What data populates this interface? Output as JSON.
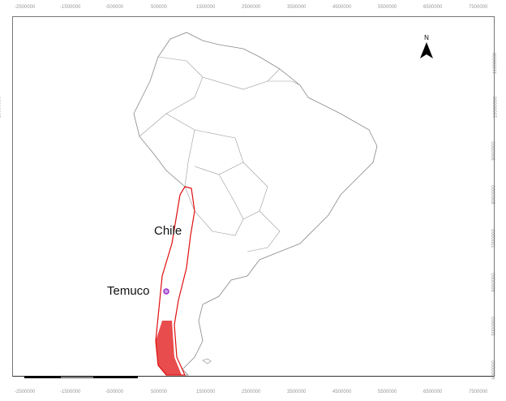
{
  "x_ticks": [
    "-2500000",
    "-1500000",
    "-500000",
    "500000",
    "1500000",
    "2500000",
    "3500000",
    "4500000",
    "5500000",
    "6500000",
    "7500000"
  ],
  "y_ticks": [
    "11000000",
    "10000000",
    "9000000",
    "8000000",
    "7000000",
    "6000000",
    "5000000",
    "4000000"
  ],
  "labels": {
    "country": "Chile",
    "city": "Temuco"
  },
  "north_arrow": {
    "letter": "N"
  },
  "colors": {
    "chile": "#e01010",
    "city_marker": "#9b30c8",
    "borders": "#888888"
  }
}
